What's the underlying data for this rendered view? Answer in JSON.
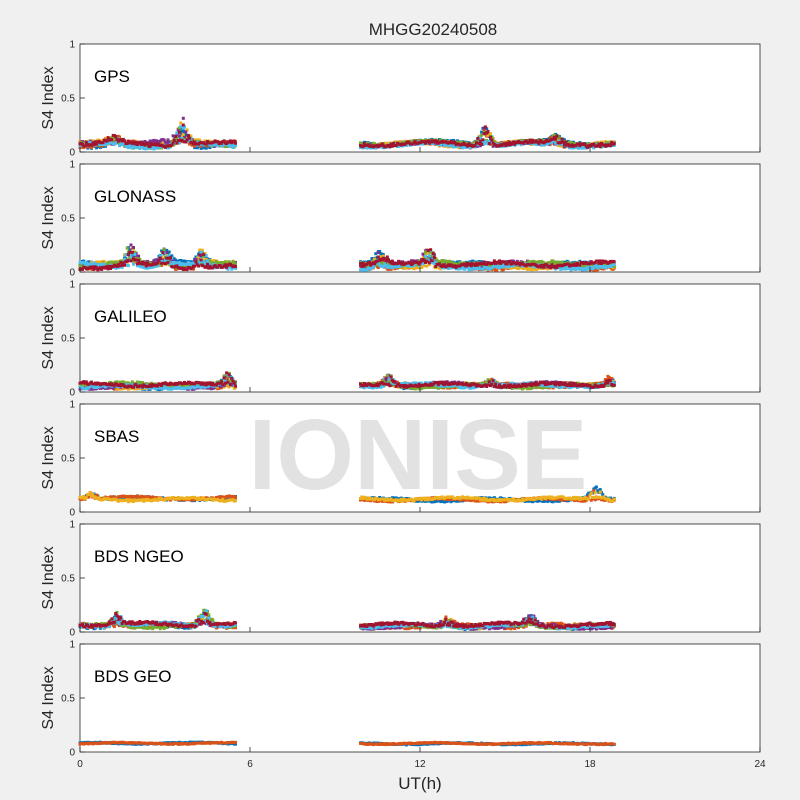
{
  "figure": {
    "title": "MHGG20240508",
    "xlabel": "UT(h)",
    "ylabel": "S4 Index",
    "watermark": "IONISE"
  },
  "chart_data": {
    "type": "scatter",
    "title": "MHGG20240508",
    "xlabel": "UT(h)",
    "ylabel": "S4 Index",
    "xlim": [
      0,
      24
    ],
    "ylim": [
      0,
      1
    ],
    "xticks": [
      "0",
      "6",
      "12",
      "18",
      "24"
    ],
    "yticks": [
      "0",
      "0.5",
      "1"
    ],
    "grid": false,
    "data_windows_ut": [
      [
        0,
        5.5
      ],
      [
        9.9,
        18.9
      ]
    ],
    "colors": [
      "#0072BD",
      "#D95319",
      "#EDB120",
      "#7E2F8E",
      "#77AC30",
      "#4DBEEE",
      "#A2142F"
    ],
    "panels": [
      {
        "name": "GPS",
        "baseline": 0.07,
        "spread": 0.03,
        "series_count": 7,
        "peaks": [
          {
            "x": 3.6,
            "y": 0.28
          },
          {
            "x": 14.3,
            "y": 0.24
          },
          {
            "x": 1.2,
            "y": 0.15
          },
          {
            "x": 16.8,
            "y": 0.14
          }
        ]
      },
      {
        "name": "GLONASS",
        "baseline": 0.06,
        "spread": 0.03,
        "series_count": 7,
        "peaks": [
          {
            "x": 1.8,
            "y": 0.24
          },
          {
            "x": 3.0,
            "y": 0.21
          },
          {
            "x": 4.3,
            "y": 0.2
          },
          {
            "x": 12.3,
            "y": 0.22
          },
          {
            "x": 10.6,
            "y": 0.18
          }
        ]
      },
      {
        "name": "GALILEO",
        "baseline": 0.06,
        "spread": 0.025,
        "series_count": 7,
        "peaks": [
          {
            "x": 5.2,
            "y": 0.17
          },
          {
            "x": 10.9,
            "y": 0.16
          },
          {
            "x": 18.7,
            "y": 0.13
          },
          {
            "x": 14.5,
            "y": 0.12
          }
        ]
      },
      {
        "name": "SBAS",
        "baseline": 0.12,
        "spread": 0.02,
        "series_count": 3,
        "peaks": [
          {
            "x": 18.2,
            "y": 0.24
          },
          {
            "x": 0.4,
            "y": 0.18
          }
        ]
      },
      {
        "name": "BDS NGEO",
        "baseline": 0.06,
        "spread": 0.025,
        "series_count": 7,
        "peaks": [
          {
            "x": 4.4,
            "y": 0.22
          },
          {
            "x": 1.3,
            "y": 0.17
          },
          {
            "x": 15.9,
            "y": 0.16
          },
          {
            "x": 13.0,
            "y": 0.13
          }
        ]
      },
      {
        "name": "BDS GEO",
        "baseline": 0.08,
        "spread": 0.01,
        "series_count": 2,
        "peaks": []
      }
    ]
  }
}
